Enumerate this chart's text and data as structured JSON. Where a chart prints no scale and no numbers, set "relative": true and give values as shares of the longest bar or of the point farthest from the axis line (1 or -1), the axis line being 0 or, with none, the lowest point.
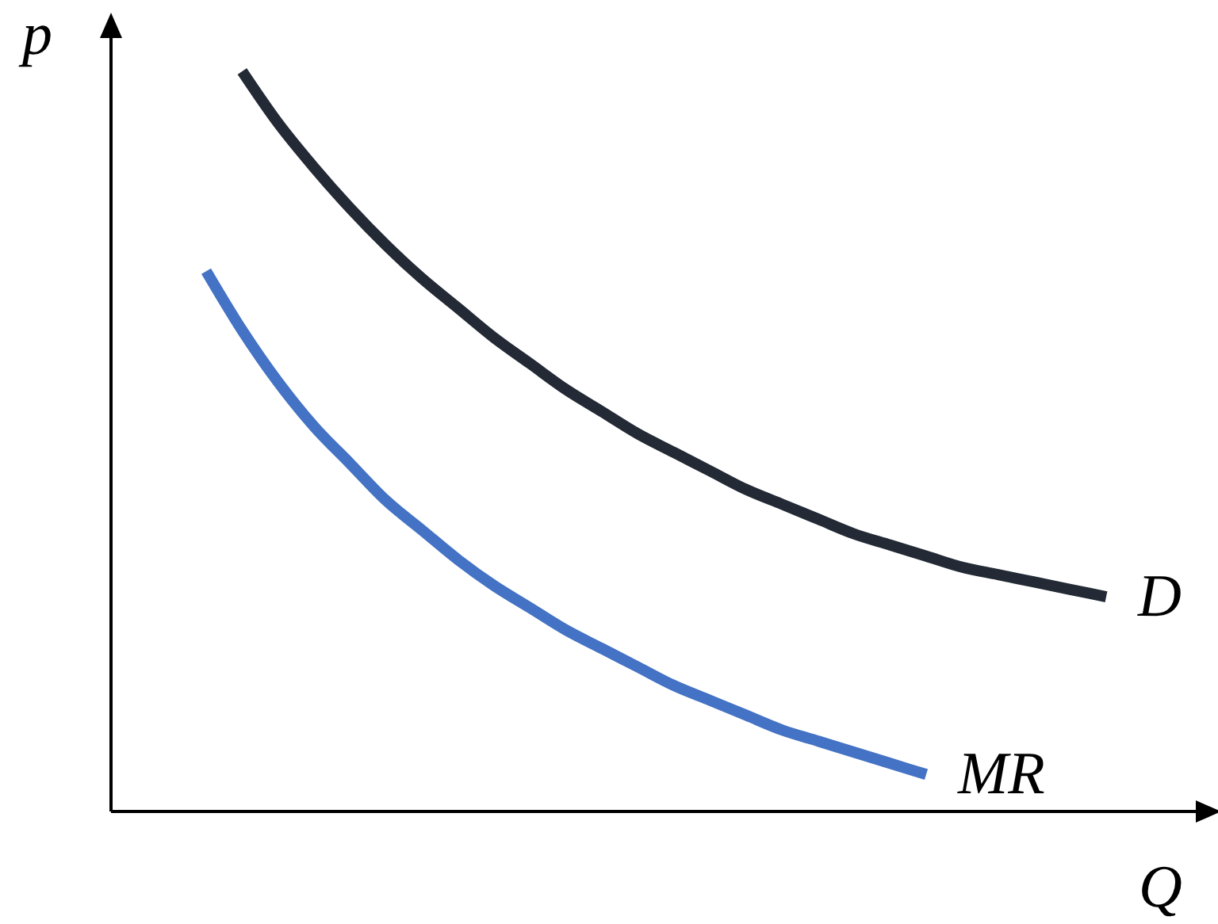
{
  "chart_data": {
    "type": "line",
    "relative": true,
    "xlabel": "Q",
    "ylabel": "p",
    "marker": "none",
    "line_style": "solid",
    "categories": [
      null,
      null,
      null,
      null,
      null,
      null,
      null,
      null,
      null,
      null,
      null,
      null,
      null,
      null,
      null,
      null,
      null,
      null,
      null,
      null,
      null,
      null,
      null,
      null,
      null,
      null
    ],
    "series": [
      {
        "name": "D",
        "color": "#232a35",
        "values": [
          null,
          1.0,
          0.93,
          0.87,
          0.815,
          0.765,
          0.72,
          0.68,
          0.64,
          0.605,
          0.57,
          0.54,
          0.51,
          0.485,
          0.46,
          0.435,
          0.415,
          0.395,
          0.375,
          0.36,
          0.345,
          0.33,
          0.32,
          0.31,
          0.3,
          0.29
        ]
      },
      {
        "name": "MR",
        "color": "#4472c4",
        "values": [
          0.73,
          0.65,
          0.58,
          0.52,
          0.47,
          0.42,
          0.38,
          0.34,
          0.305,
          0.275,
          0.245,
          0.22,
          0.195,
          0.17,
          0.15,
          0.13,
          0.11,
          0.095,
          0.08,
          0.065,
          0.05,
          null,
          null,
          null,
          null,
          null
        ]
      }
    ]
  }
}
